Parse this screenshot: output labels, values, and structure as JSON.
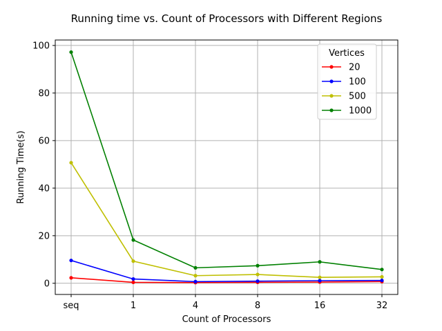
{
  "chart_data": {
    "type": "line",
    "title": "Running time vs. Count of Processors with Different Regions",
    "xlabel": "Count of Processors",
    "ylabel": "Running Time(s)",
    "categories": [
      "seq",
      "1",
      "4",
      "8",
      "16",
      "32"
    ],
    "ylim": [
      -4.7,
      102.3
    ],
    "yticks": [
      0,
      20,
      40,
      60,
      80,
      100
    ],
    "grid": true,
    "legend": {
      "title": "Vertices",
      "placement": "upper right"
    },
    "series": [
      {
        "name": "20",
        "color": "#ff0000",
        "values": [
          2.3,
          0.4,
          0.3,
          0.4,
          0.5,
          0.7
        ]
      },
      {
        "name": "100",
        "color": "#0000ff",
        "values": [
          9.6,
          1.8,
          0.7,
          0.9,
          1.1,
          1.2
        ]
      },
      {
        "name": "500",
        "color": "#bfbf00",
        "values": [
          50.7,
          9.3,
          3.2,
          3.7,
          2.5,
          2.7
        ]
      },
      {
        "name": "1000",
        "color": "#008000",
        "values": [
          97.2,
          18.2,
          6.5,
          7.4,
          9.0,
          5.8
        ]
      }
    ]
  }
}
